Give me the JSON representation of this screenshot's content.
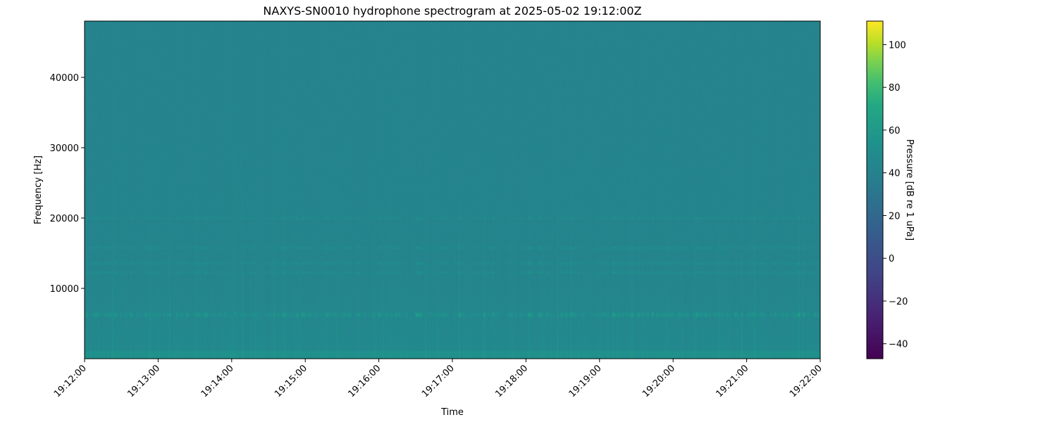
{
  "chart_data": {
    "type": "heatmap",
    "title": "NAXYS-SN0010 hydrophone spectrogram at 2025-05-02 19:12:00Z",
    "xlabel": "Time",
    "ylabel": "Frequency [Hz]",
    "colorbar_label": "Pressure [dB re 1 uPa]",
    "colormap": "viridis",
    "xlim": [
      "19:12:00",
      "19:22:00"
    ],
    "ylim": [
      0,
      48000
    ],
    "clim": [
      -47,
      111
    ],
    "x_ticks": [
      "19:12:00",
      "19:13:00",
      "19:14:00",
      "19:15:00",
      "19:16:00",
      "19:17:00",
      "19:18:00",
      "19:19:00",
      "19:20:00",
      "19:21:00",
      "19:22:00"
    ],
    "y_ticks": [
      10000,
      20000,
      30000,
      40000
    ],
    "colorbar_ticks": [
      -40,
      -20,
      0,
      20,
      40,
      60,
      80,
      100
    ],
    "background_level_db": 42,
    "low_frequency_level_db": 50,
    "tonal_bands_hz": [
      6300,
      12300,
      13600,
      15800,
      20000
    ],
    "grid": false
  }
}
